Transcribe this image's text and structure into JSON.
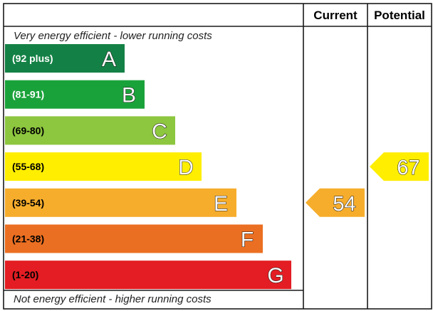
{
  "headers": {
    "current": "Current",
    "potential": "Potential"
  },
  "top_note": "Very energy efficient - lower running costs",
  "bottom_note": "Not energy efficient - higher running costs",
  "chart_data": {
    "type": "bar",
    "bands": [
      {
        "letter": "A",
        "range": "(92 plus)",
        "min": 92,
        "max": null,
        "color": "#138145",
        "range_text_color": "#ffffff"
      },
      {
        "letter": "B",
        "range": "(81-91)",
        "min": 81,
        "max": 91,
        "color": "#1aa23a",
        "range_text_color": "#ffffff"
      },
      {
        "letter": "C",
        "range": "(69-80)",
        "min": 69,
        "max": 80,
        "color": "#8dc63f",
        "range_text_color": "#000000"
      },
      {
        "letter": "D",
        "range": "(55-68)",
        "min": 55,
        "max": 68,
        "color": "#ffee00",
        "range_text_color": "#000000"
      },
      {
        "letter": "E",
        "range": "(39-54)",
        "min": 39,
        "max": 54,
        "color": "#f6ad2c",
        "range_text_color": "#000000"
      },
      {
        "letter": "F",
        "range": "(21-38)",
        "min": 21,
        "max": 38,
        "color": "#eb6f22",
        "range_text_color": "#000000"
      },
      {
        "letter": "G",
        "range": "(1-20)",
        "min": 1,
        "max": 20,
        "color": "#e31d23",
        "range_text_color": "#000000"
      }
    ],
    "current": {
      "value": 54,
      "band": "E",
      "color": "#f6ad2c"
    },
    "potential": {
      "value": 67,
      "band": "D",
      "color": "#ffee00"
    }
  }
}
